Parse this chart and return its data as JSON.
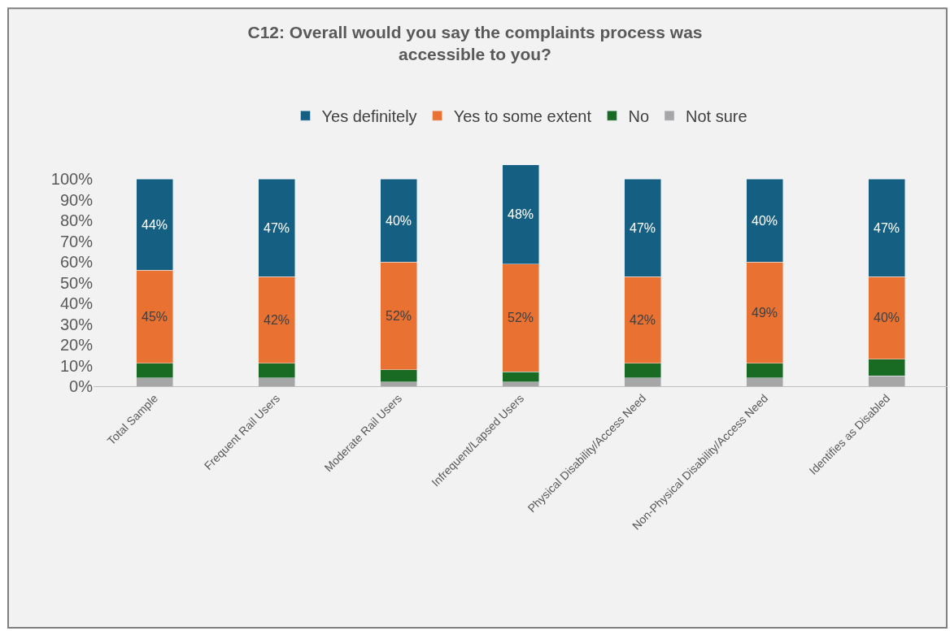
{
  "chart_data": {
    "type": "bar",
    "stacked": true,
    "title": "C12: Overall would you say the complaints process was accessible to you?",
    "categories": [
      "Total Sample",
      "Frequent Rail Users",
      "Moderate Rail Users",
      "Infrequent/Lapsed Users",
      "Physical Disability/Access Need",
      "Non-Physical Disability/Access Need",
      "Identifies as Disabled"
    ],
    "series": [
      {
        "name": "Not sure",
        "color": "#a6a6a6",
        "values": [
          4,
          4,
          2,
          2,
          4,
          4,
          5
        ]
      },
      {
        "name": "No",
        "color": "#196b24",
        "values": [
          7,
          7,
          6,
          5,
          7,
          7,
          8
        ]
      },
      {
        "name": "Yes to some extent",
        "color": "#e97132",
        "values": [
          45,
          42,
          52,
          52,
          42,
          49,
          40
        ],
        "value_labels": [
          "45%",
          "42%",
          "52%",
          "52%",
          "42%",
          "49%",
          "40%"
        ]
      },
      {
        "name": "Yes definitely",
        "color": "#156082",
        "values": [
          44,
          47,
          40,
          48,
          47,
          40,
          47
        ],
        "value_labels": [
          "44%",
          "47%",
          "40%",
          "48%",
          "47%",
          "40%",
          "47%"
        ]
      }
    ],
    "ylim": [
      0,
      108
    ],
    "yticks": [
      {
        "value": 0,
        "label": "0%"
      },
      {
        "value": 10,
        "label": "10%"
      },
      {
        "value": 20,
        "label": "20%"
      },
      {
        "value": 30,
        "label": "30%"
      },
      {
        "value": 40,
        "label": "40%"
      },
      {
        "value": 50,
        "label": "50%"
      },
      {
        "value": 60,
        "label": "60%"
      },
      {
        "value": 70,
        "label": "70%"
      },
      {
        "value": 80,
        "label": "80%"
      },
      {
        "value": 90,
        "label": "90%"
      },
      {
        "value": 100,
        "label": "100%"
      }
    ],
    "legend": "top",
    "grid": false
  }
}
